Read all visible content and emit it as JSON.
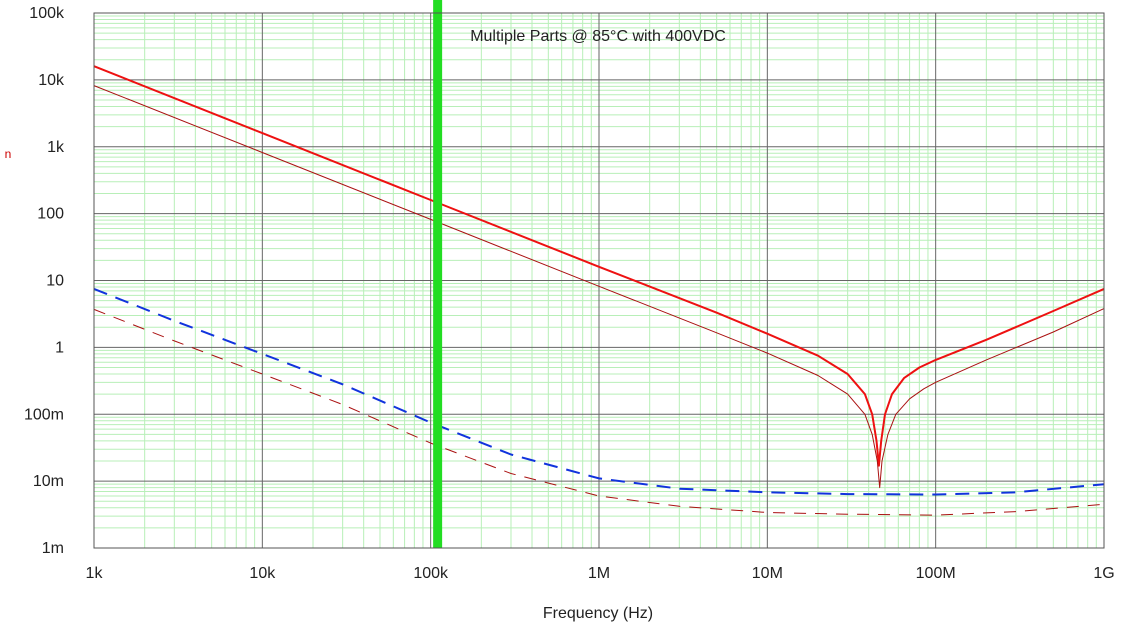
{
  "chart_data": {
    "type": "line",
    "title": "",
    "annotation": "Multiple Parts @ 85°C with 400VDC",
    "xlabel": "Frequency (Hz)",
    "ylabel": "",
    "side_label": "n",
    "x_scale": "log",
    "y_scale": "log",
    "xlim": [
      1000,
      1000000000
    ],
    "ylim": [
      0.001,
      100000
    ],
    "x_ticks": [
      {
        "value": 1000,
        "label": "1k"
      },
      {
        "value": 10000,
        "label": "10k"
      },
      {
        "value": 100000,
        "label": "100k"
      },
      {
        "value": 1000000,
        "label": "1M"
      },
      {
        "value": 10000000,
        "label": "10M"
      },
      {
        "value": 100000000,
        "label": "100M"
      },
      {
        "value": 1000000000,
        "label": "1G"
      }
    ],
    "y_ticks": [
      {
        "value": 0.001,
        "label": "1m"
      },
      {
        "value": 0.01,
        "label": "10m"
      },
      {
        "value": 0.1,
        "label": "100m"
      },
      {
        "value": 1,
        "label": "1"
      },
      {
        "value": 10,
        "label": "10"
      },
      {
        "value": 100,
        "label": "100"
      },
      {
        "value": 1000,
        "label": "1k"
      },
      {
        "value": 10000,
        "label": "10k"
      },
      {
        "value": 100000,
        "label": "100k"
      }
    ],
    "grid": true,
    "marker": {
      "x": 110000,
      "color": "#22dd22"
    },
    "series": [
      {
        "color": "#ee1111",
        "style": "solid",
        "width": 2,
        "points": [
          [
            1000,
            16000
          ],
          [
            10000,
            1600
          ],
          [
            100000,
            160
          ],
          [
            1000000,
            16
          ],
          [
            5000000,
            3.3
          ],
          [
            10000000,
            1.6
          ],
          [
            20000000,
            0.75
          ],
          [
            30000000,
            0.4
          ],
          [
            38000000,
            0.2
          ],
          [
            42000000,
            0.1
          ],
          [
            44500000,
            0.04
          ],
          [
            46000000,
            0.017
          ],
          [
            47500000,
            0.04
          ],
          [
            50000000,
            0.1
          ],
          [
            55000000,
            0.2
          ],
          [
            65000000,
            0.35
          ],
          [
            80000000,
            0.5
          ],
          [
            100000000,
            0.65
          ],
          [
            200000000,
            1.3
          ],
          [
            500000000,
            3.5
          ],
          [
            1000000000,
            7.5
          ]
        ]
      },
      {
        "color": "#aa1111",
        "style": "solid",
        "width": 1,
        "points": [
          [
            1000,
            8200
          ],
          [
            10000,
            820
          ],
          [
            100000,
            82
          ],
          [
            1000000,
            8.2
          ],
          [
            5000000,
            1.65
          ],
          [
            10000000,
            0.82
          ],
          [
            20000000,
            0.38
          ],
          [
            30000000,
            0.2
          ],
          [
            38000000,
            0.1
          ],
          [
            42000000,
            0.05
          ],
          [
            45000000,
            0.02
          ],
          [
            46500000,
            0.008
          ],
          [
            48000000,
            0.02
          ],
          [
            52000000,
            0.05
          ],
          [
            58000000,
            0.1
          ],
          [
            70000000,
            0.17
          ],
          [
            85000000,
            0.24
          ],
          [
            100000000,
            0.3
          ],
          [
            200000000,
            0.65
          ],
          [
            500000000,
            1.7
          ],
          [
            1000000000,
            3.8
          ]
        ]
      },
      {
        "color": "#1133dd",
        "style": "dashed",
        "width": 2,
        "points": [
          [
            1000,
            7.5
          ],
          [
            3000,
            2.5
          ],
          [
            10000,
            0.8
          ],
          [
            30000,
            0.28
          ],
          [
            100000,
            0.075
          ],
          [
            300000,
            0.025
          ],
          [
            1000000,
            0.011
          ],
          [
            3000000,
            0.0077
          ],
          [
            10000000,
            0.0068
          ],
          [
            30000000,
            0.0064
          ],
          [
            100000000,
            0.0063
          ],
          [
            300000000,
            0.0068
          ],
          [
            1000000000,
            0.009
          ]
        ]
      },
      {
        "color": "#aa1111",
        "style": "dashed",
        "width": 1,
        "points": [
          [
            1000,
            3.7
          ],
          [
            3000,
            1.25
          ],
          [
            10000,
            0.4
          ],
          [
            30000,
            0.14
          ],
          [
            100000,
            0.037
          ],
          [
            300000,
            0.013
          ],
          [
            1000000,
            0.006
          ],
          [
            3000000,
            0.0042
          ],
          [
            10000000,
            0.0034
          ],
          [
            30000000,
            0.0032
          ],
          [
            100000000,
            0.0031
          ],
          [
            300000000,
            0.0035
          ],
          [
            1000000000,
            0.0045
          ]
        ]
      }
    ]
  }
}
